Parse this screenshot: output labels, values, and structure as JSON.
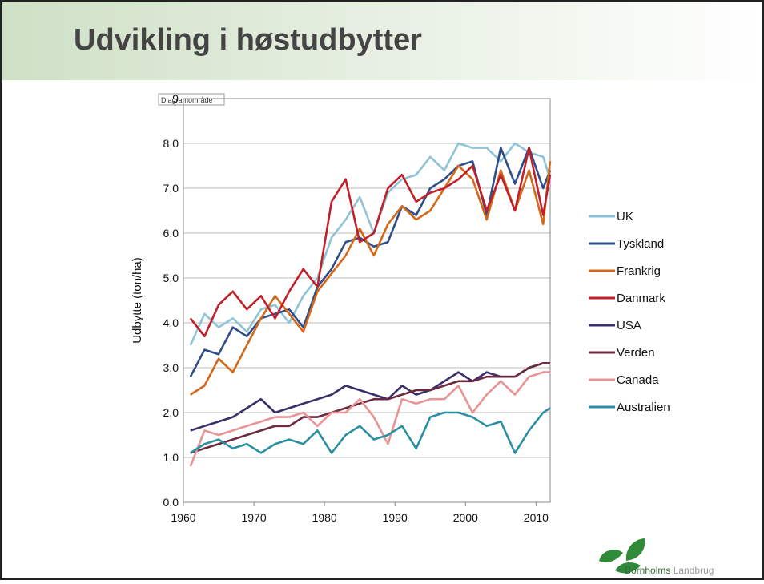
{
  "slide_title": "Udvikling i høstudbytter",
  "logo": {
    "name": "Bornholms",
    "suffix": "Landbrug"
  },
  "chart_data": {
    "type": "line",
    "tooltip": "Diagramområde",
    "y_label": "Udbytte (ton/ha)",
    "xlim": [
      1960,
      2012
    ],
    "xticks": [
      1960,
      1970,
      1980,
      1990,
      2000,
      2010
    ],
    "ylim": [
      0,
      9
    ],
    "yticks": [
      {
        "value": 0,
        "label": "0,0"
      },
      {
        "value": 1,
        "label": "1,0"
      },
      {
        "value": 2,
        "label": "2,0"
      },
      {
        "value": 3,
        "label": "3,0"
      },
      {
        "value": 4,
        "label": "4,0"
      },
      {
        "value": 5,
        "label": "5,0"
      },
      {
        "value": 6,
        "label": "6,0"
      },
      {
        "value": 7,
        "label": "7,0"
      },
      {
        "value": 8,
        "label": "8,0"
      },
      9
    ],
    "grid": true,
    "legend": "right",
    "x": [
      1961,
      1963,
      1965,
      1967,
      1969,
      1971,
      1973,
      1975,
      1977,
      1979,
      1981,
      1983,
      1985,
      1987,
      1989,
      1991,
      1993,
      1995,
      1997,
      1999,
      2001,
      2003,
      2005,
      2007,
      2009,
      2011,
      2012
    ],
    "series": [
      {
        "name": "UK",
        "color": "#8fc3d6",
        "values": [
          3.5,
          4.2,
          3.9,
          4.1,
          3.8,
          4.3,
          4.4,
          4.0,
          4.6,
          5.0,
          5.9,
          6.3,
          6.8,
          6.0,
          6.9,
          7.2,
          7.3,
          7.7,
          7.4,
          8.0,
          7.9,
          7.9,
          7.6,
          8.0,
          7.8,
          7.7,
          7.2
        ]
      },
      {
        "name": "Tyskland",
        "color": "#2e4d8a",
        "values": [
          2.8,
          3.4,
          3.3,
          3.9,
          3.7,
          4.1,
          4.2,
          4.3,
          3.9,
          4.8,
          5.2,
          5.8,
          5.9,
          5.7,
          5.8,
          6.6,
          6.4,
          7.0,
          7.2,
          7.5,
          7.6,
          6.4,
          7.9,
          7.1,
          7.9,
          7.0,
          7.4
        ]
      },
      {
        "name": "Frankrig",
        "color": "#d4691b",
        "values": [
          2.4,
          2.6,
          3.2,
          2.9,
          3.5,
          4.1,
          4.6,
          4.2,
          3.8,
          4.7,
          5.1,
          5.5,
          6.1,
          5.5,
          6.2,
          6.6,
          6.3,
          6.5,
          7.0,
          7.5,
          7.2,
          6.3,
          7.4,
          6.5,
          7.4,
          6.2,
          7.6
        ]
      },
      {
        "name": "Danmark",
        "color": "#c0202a",
        "values": [
          4.1,
          3.7,
          4.4,
          4.7,
          4.3,
          4.6,
          4.1,
          4.7,
          5.2,
          4.8,
          6.7,
          7.2,
          5.8,
          6.0,
          7.0,
          7.3,
          6.7,
          6.9,
          7.0,
          7.2,
          7.5,
          6.5,
          7.3,
          6.5,
          7.9,
          6.4,
          7.3
        ]
      },
      {
        "name": "USA",
        "color": "#3b2f6b",
        "values": [
          1.6,
          1.7,
          1.8,
          1.9,
          2.1,
          2.3,
          2.0,
          2.1,
          2.2,
          2.3,
          2.4,
          2.6,
          2.5,
          2.4,
          2.3,
          2.6,
          2.4,
          2.5,
          2.7,
          2.9,
          2.7,
          2.9,
          2.8,
          2.8,
          3.0,
          3.1,
          3.1
        ]
      },
      {
        "name": "Verden",
        "color": "#6b2a3f",
        "values": [
          1.1,
          1.2,
          1.3,
          1.4,
          1.5,
          1.6,
          1.7,
          1.7,
          1.9,
          1.9,
          2.0,
          2.1,
          2.2,
          2.3,
          2.3,
          2.4,
          2.5,
          2.5,
          2.6,
          2.7,
          2.7,
          2.8,
          2.8,
          2.8,
          3.0,
          3.1,
          3.1
        ]
      },
      {
        "name": "Canada",
        "color": "#e89496",
        "values": [
          0.8,
          1.6,
          1.5,
          1.6,
          1.7,
          1.8,
          1.9,
          1.9,
          2.0,
          1.7,
          2.0,
          2.0,
          2.3,
          1.9,
          1.3,
          2.3,
          2.2,
          2.3,
          2.3,
          2.6,
          2.0,
          2.4,
          2.7,
          2.4,
          2.8,
          2.9,
          2.9
        ]
      },
      {
        "name": "Australien",
        "color": "#2a8fa0",
        "values": [
          1.1,
          1.3,
          1.4,
          1.2,
          1.3,
          1.1,
          1.3,
          1.4,
          1.3,
          1.6,
          1.1,
          1.5,
          1.7,
          1.4,
          1.5,
          1.7,
          1.2,
          1.9,
          2.0,
          2.0,
          1.9,
          1.7,
          1.8,
          1.1,
          1.6,
          2.0,
          2.1
        ]
      }
    ]
  }
}
